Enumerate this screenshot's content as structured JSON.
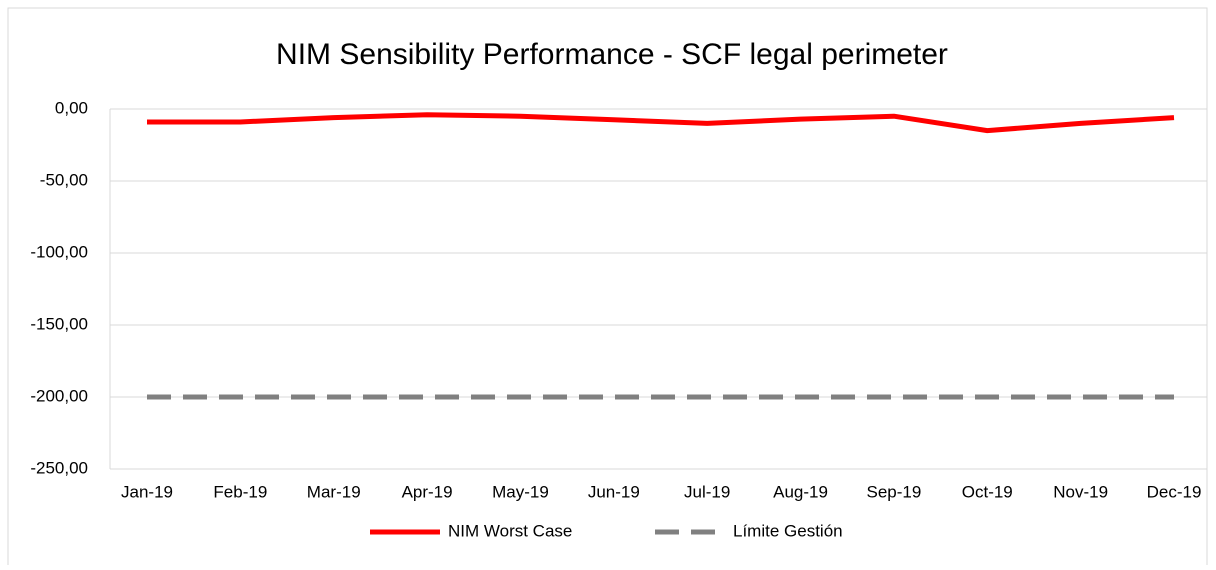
{
  "chart_data": {
    "type": "line",
    "title": "NIM Sensibility  Performance - SCF legal perimeter",
    "categories": [
      "Jan-19",
      "Feb-19",
      "Mar-19",
      "Apr-19",
      "May-19",
      "Jun-19",
      "Jul-19",
      "Aug-19",
      "Sep-19",
      "Oct-19",
      "Nov-19",
      "Dec-19"
    ],
    "series": [
      {
        "name": "NIM Worst Case",
        "color": "#ff0000",
        "style": "solid",
        "values": [
          -9,
          -9,
          -6,
          -4,
          -5,
          -7.5,
          -10,
          -7,
          -5,
          -15,
          -10,
          -6
        ]
      },
      {
        "name": "Límite Gestión",
        "color": "#808080",
        "style": "dashed",
        "values": [
          -200,
          -200,
          -200,
          -200,
          -200,
          -200,
          -200,
          -200,
          -200,
          -200,
          -200,
          -200
        ]
      }
    ],
    "ylim": [
      -250,
      0
    ],
    "yticks": [
      {
        "value": 0,
        "label": "0,00"
      },
      {
        "value": -50,
        "label": "-50,00"
      },
      {
        "value": -100,
        "label": "-100,00"
      },
      {
        "value": -150,
        "label": "-150,00"
      },
      {
        "value": -200,
        "label": "-200,00"
      },
      {
        "value": -250,
        "label": "-250,00"
      }
    ],
    "grid": true,
    "legend": "bottom"
  }
}
